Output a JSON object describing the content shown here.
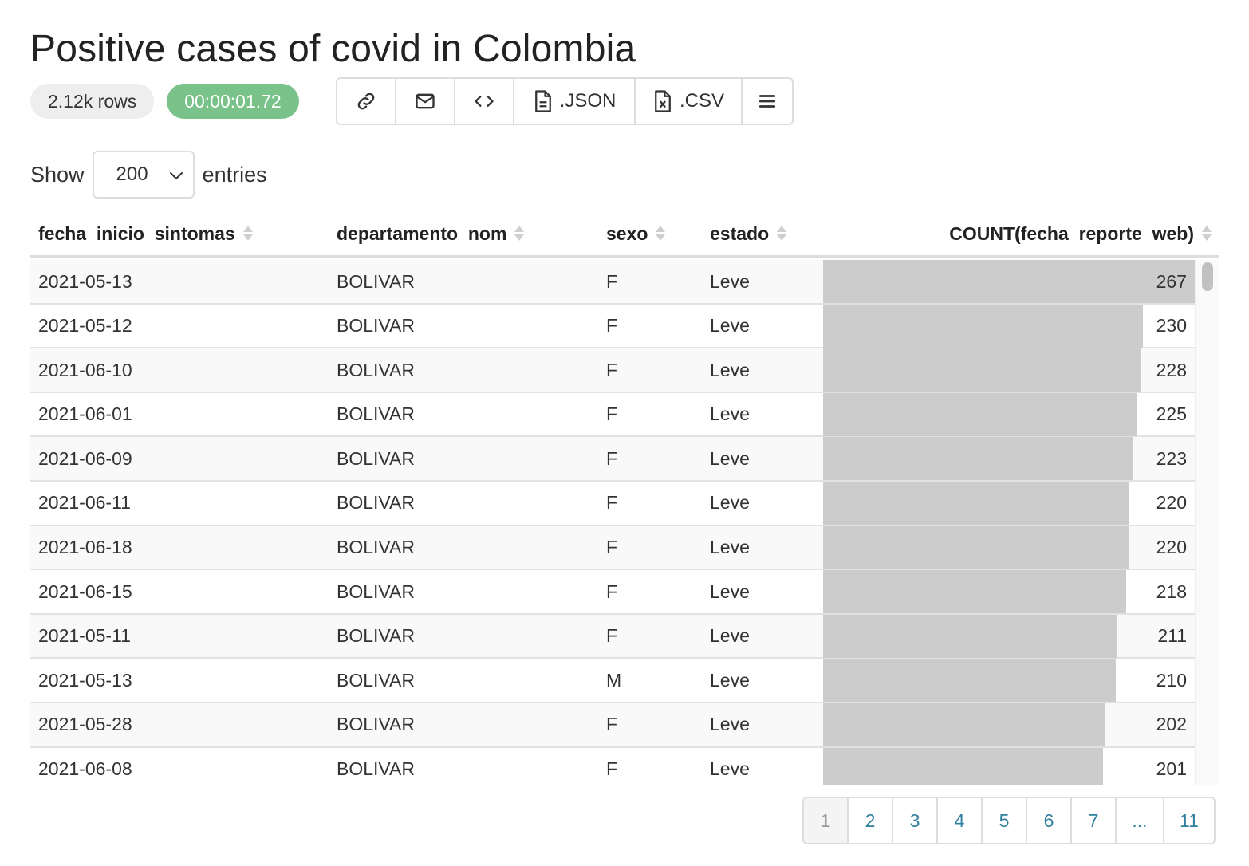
{
  "title": "Positive cases of covid in Colombia",
  "badges": {
    "rows": "2.12k rows",
    "time": "00:00:01.72"
  },
  "toolbar": {
    "link_icon": "link-icon",
    "email_icon": "envelope-icon",
    "embed_icon": "code-icon",
    "json_label": ".JSON",
    "csv_label": ".CSV",
    "menu_icon": "hamburger-icon"
  },
  "length_control": {
    "show": "Show",
    "value": "200",
    "entries": "entries"
  },
  "table": {
    "columns": [
      "fecha_inicio_sintomas",
      "departamento_nom",
      "sexo",
      "estado",
      "COUNT(fecha_reporte_web)"
    ],
    "bar_color": "#cccccc",
    "bar_max": 267,
    "rows": [
      {
        "fecha": "2021-05-13",
        "dept": "BOLIVAR",
        "sexo": "F",
        "estado": "Leve",
        "count": "267"
      },
      {
        "fecha": "2021-05-12",
        "dept": "BOLIVAR",
        "sexo": "F",
        "estado": "Leve",
        "count": "230"
      },
      {
        "fecha": "2021-06-10",
        "dept": "BOLIVAR",
        "sexo": "F",
        "estado": "Leve",
        "count": "228"
      },
      {
        "fecha": "2021-06-01",
        "dept": "BOLIVAR",
        "sexo": "F",
        "estado": "Leve",
        "count": "225"
      },
      {
        "fecha": "2021-06-09",
        "dept": "BOLIVAR",
        "sexo": "F",
        "estado": "Leve",
        "count": "223"
      },
      {
        "fecha": "2021-06-11",
        "dept": "BOLIVAR",
        "sexo": "F",
        "estado": "Leve",
        "count": "220"
      },
      {
        "fecha": "2021-06-18",
        "dept": "BOLIVAR",
        "sexo": "F",
        "estado": "Leve",
        "count": "220"
      },
      {
        "fecha": "2021-06-15",
        "dept": "BOLIVAR",
        "sexo": "F",
        "estado": "Leve",
        "count": "218"
      },
      {
        "fecha": "2021-05-11",
        "dept": "BOLIVAR",
        "sexo": "F",
        "estado": "Leve",
        "count": "211"
      },
      {
        "fecha": "2021-05-13",
        "dept": "BOLIVAR",
        "sexo": "M",
        "estado": "Leve",
        "count": "210"
      },
      {
        "fecha": "2021-05-28",
        "dept": "BOLIVAR",
        "sexo": "F",
        "estado": "Leve",
        "count": "202"
      },
      {
        "fecha": "2021-06-08",
        "dept": "BOLIVAR",
        "sexo": "F",
        "estado": "Leve",
        "count": "201"
      }
    ]
  },
  "pagination": {
    "pages": [
      "1",
      "2",
      "3",
      "4",
      "5",
      "6",
      "7",
      "...",
      "11"
    ],
    "current": "1"
  }
}
